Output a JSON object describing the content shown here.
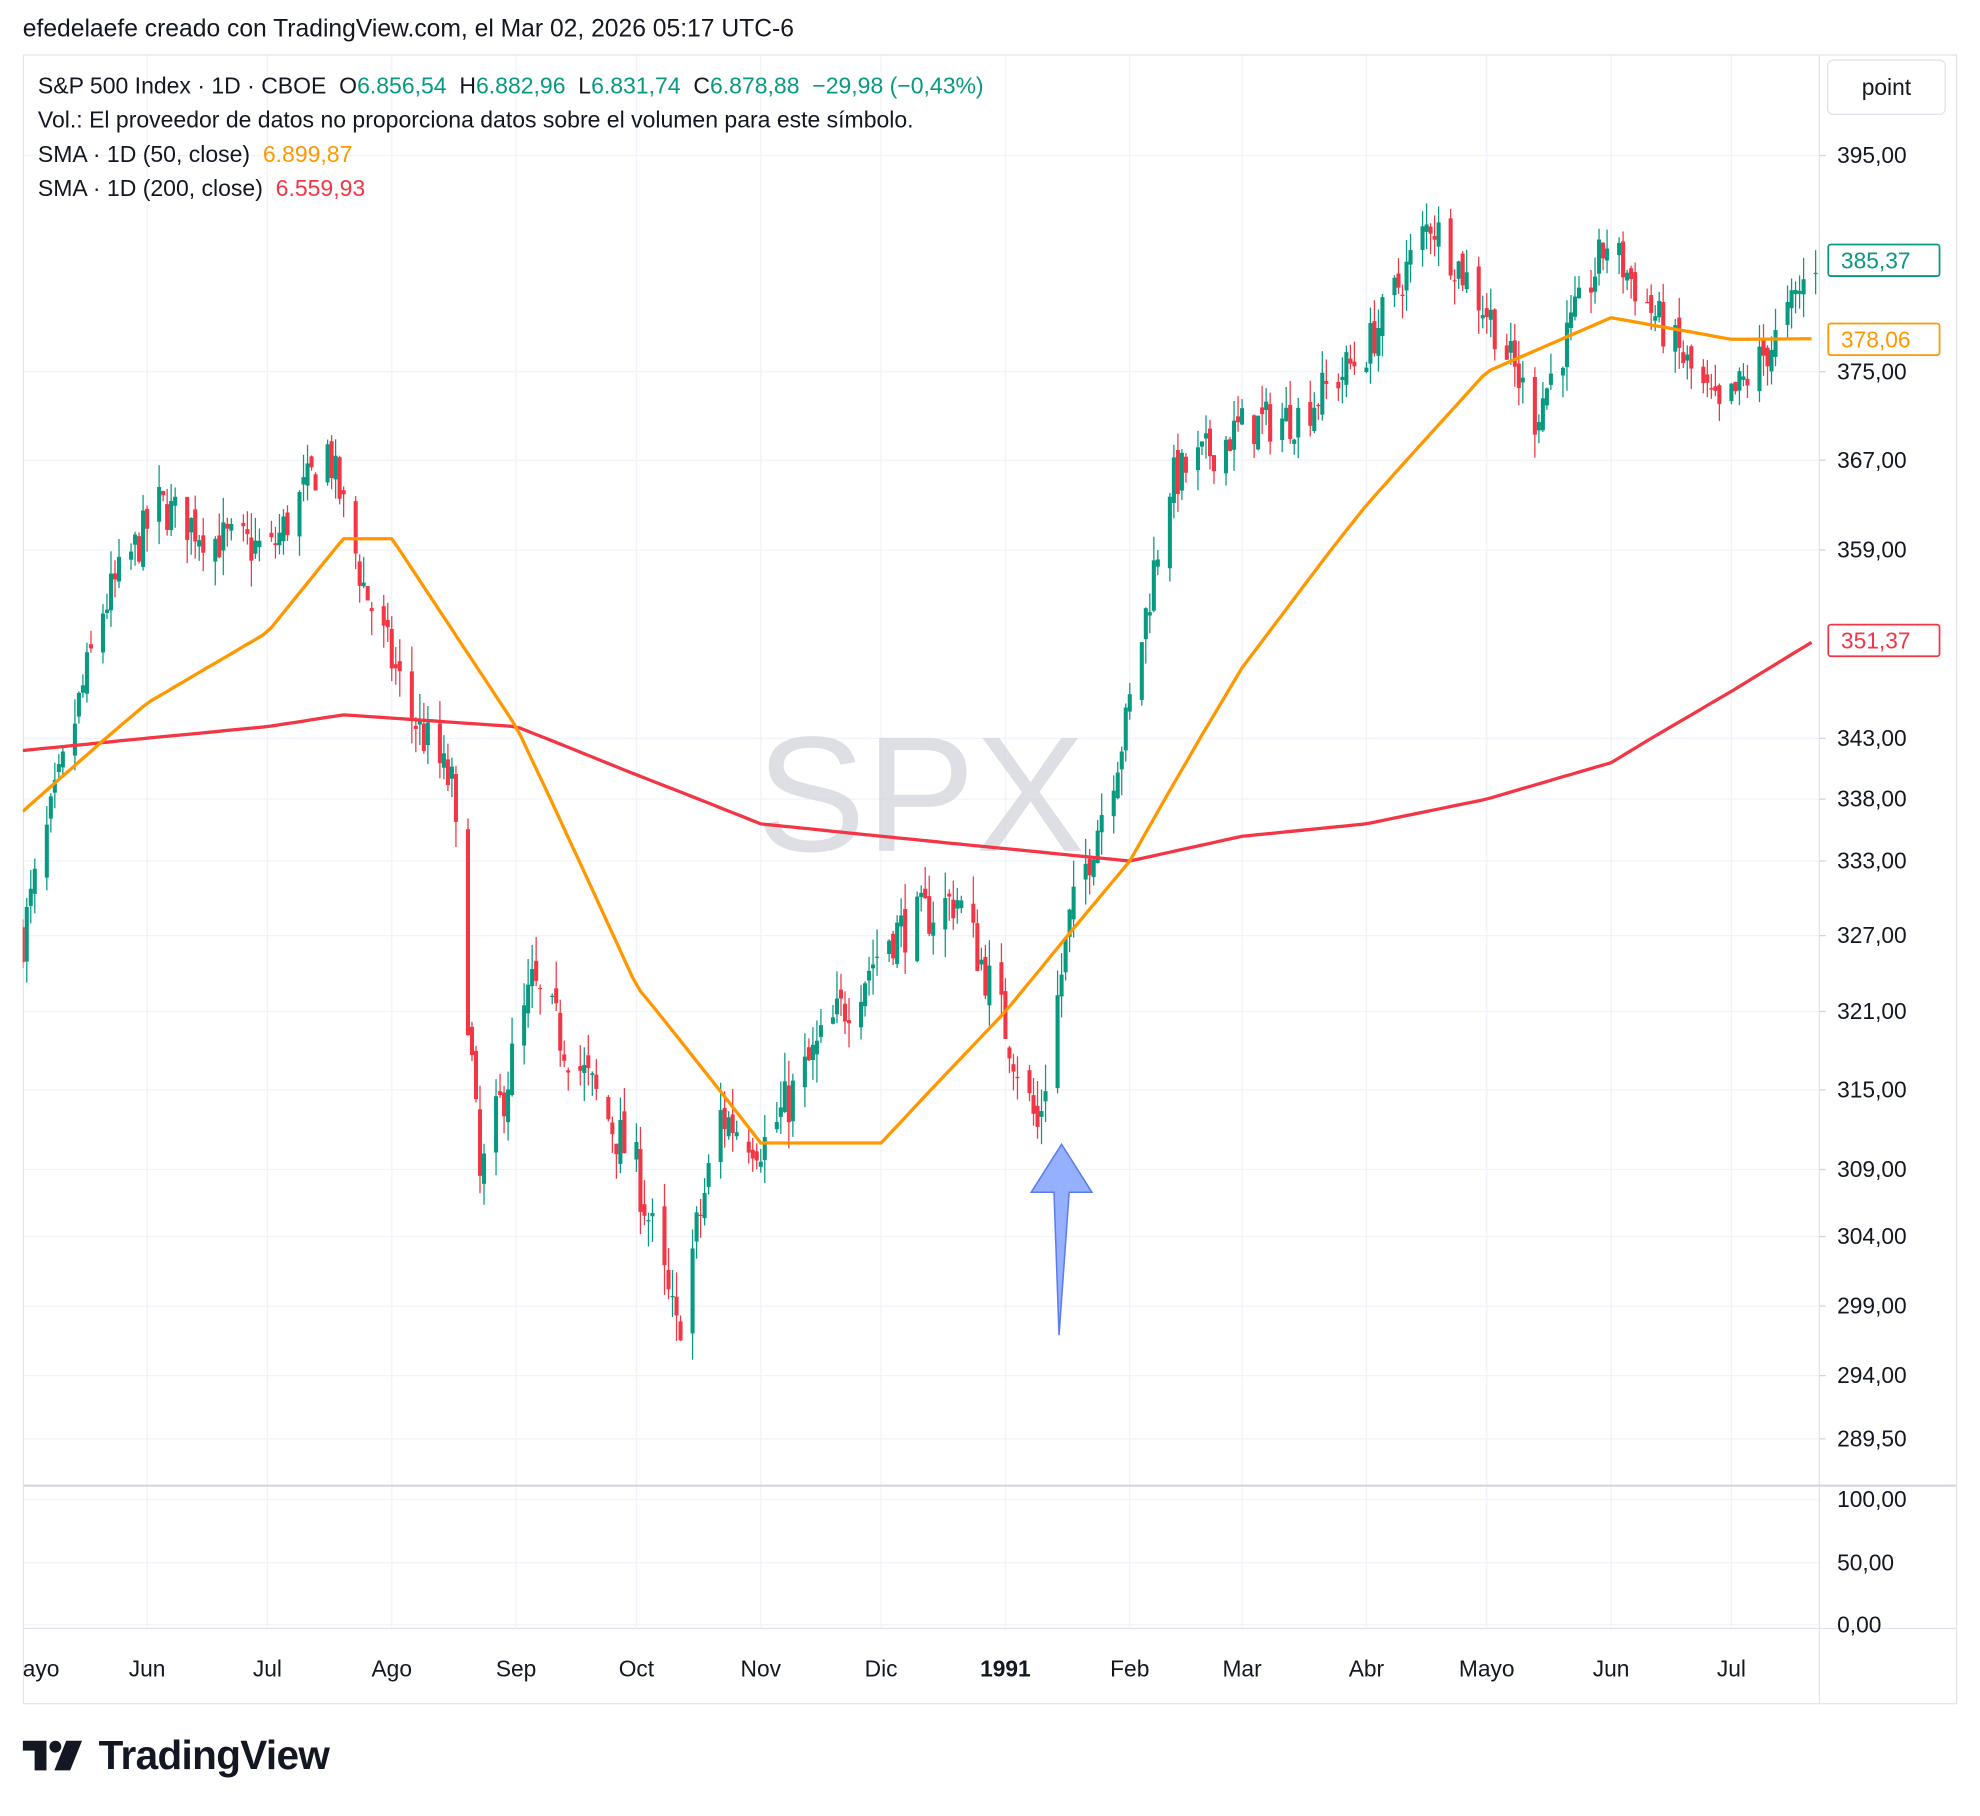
{
  "header": {
    "credit": "efedelaefe creado con TradingView.com, el Mar 02, 2026 05:17 UTC-6",
    "unit_button": "point"
  },
  "legend": {
    "symbol": "S&P 500 Index · 1D · CBOE",
    "o_label": "O",
    "o_value": "6.856,54",
    "h_label": "H",
    "h_value": "6.882,96",
    "l_label": "L",
    "l_value": "6.831,74",
    "c_label": "C",
    "c_value": "6.878,88",
    "change": "−29,98 (−0,43%)",
    "volume_note": "Vol.: El proveedor de datos no proporciona datos sobre el volumen para este símbolo.",
    "sma50_label": "SMA · 1D (50, close)",
    "sma50_value": "6.899,87",
    "sma200_label": "SMA · 1D (200, close)",
    "sma200_value": "6.559,93"
  },
  "footer": {
    "brand": "TradingView"
  },
  "colors": {
    "up": "#089981",
    "down": "#f23645",
    "sma50": "#ff9800",
    "sma200": "#f23645",
    "arrow": "#7b9cff",
    "grid": "#f0f3fa"
  },
  "chart_data": {
    "type": "candlestick",
    "watermark": "SPX",
    "x_labels": [
      "ayo",
      "Jun",
      "Jul",
      "Ago",
      "Sep",
      "Oct",
      "Nov",
      "Dic",
      "1991",
      "Feb",
      "Mar",
      "Abr",
      "Mayo",
      "Jun",
      "Jul"
    ],
    "y_ticks": [
      "395,00",
      "375,00",
      "367,00",
      "359,00",
      "343,00",
      "338,00",
      "333,00",
      "327,00",
      "321,00",
      "315,00",
      "309,00",
      "304,00",
      "299,00",
      "294,00",
      "289,50"
    ],
    "oscillator_ticks": [
      "100,00",
      "50,00",
      "0,00"
    ],
    "price_labels": [
      {
        "text": "385,37",
        "value": 385.37,
        "color": "#089981",
        "style": "outline"
      },
      {
        "text": "378,06",
        "value": 378.06,
        "color": "#ff9800",
        "style": "outline"
      },
      {
        "text": "351,37",
        "value": 351.37,
        "color": "#f23645",
        "style": "outline"
      }
    ],
    "close_anchors": [
      [
        "1990-05-01",
        327
      ],
      [
        "1990-05-21",
        354
      ],
      [
        "1990-06-04",
        363
      ],
      [
        "1990-06-18",
        360
      ],
      [
        "1990-07-02",
        359
      ],
      [
        "1990-07-16",
        368
      ],
      [
        "1990-07-25",
        356
      ],
      [
        "1990-08-06",
        345
      ],
      [
        "1990-08-16",
        339
      ],
      [
        "1990-08-23",
        308
      ],
      [
        "1990-09-05",
        323
      ],
      [
        "1990-09-20",
        315
      ],
      [
        "1990-10-01",
        309
      ],
      [
        "1990-10-11",
        297
      ],
      [
        "1990-10-22",
        313
      ],
      [
        "1990-11-02",
        311
      ],
      [
        "1990-11-15",
        318
      ],
      [
        "1990-12-03",
        327
      ],
      [
        "1990-12-20",
        330
      ],
      [
        "1991-01-02",
        319
      ],
      [
        "1991-01-09",
        312
      ],
      [
        "1991-01-17",
        328
      ],
      [
        "1991-01-31",
        344
      ],
      [
        "1991-02-11",
        365
      ],
      [
        "1991-03-01",
        370
      ],
      [
        "1991-03-15",
        371
      ],
      [
        "1991-04-01",
        377
      ],
      [
        "1991-04-17",
        389
      ],
      [
        "1991-05-02",
        380
      ],
      [
        "1991-05-13",
        371
      ],
      [
        "1991-05-31",
        387
      ],
      [
        "1991-06-14",
        379
      ],
      [
        "1991-06-28",
        371
      ],
      [
        "1991-07-12",
        378
      ],
      [
        "1991-07-22",
        385.37
      ]
    ],
    "sma50_anchors": [
      [
        "1990-05-01",
        337
      ],
      [
        "1990-06-01",
        346
      ],
      [
        "1990-07-01",
        352
      ],
      [
        "1990-07-20",
        360
      ],
      [
        "1990-08-01",
        360
      ],
      [
        "1990-09-01",
        344
      ],
      [
        "1990-10-01",
        323
      ],
      [
        "1990-11-01",
        311
      ],
      [
        "1990-12-01",
        311
      ],
      [
        "1991-01-01",
        321
      ],
      [
        "1991-02-01",
        333
      ],
      [
        "1991-03-01",
        349
      ],
      [
        "1991-04-01",
        363
      ],
      [
        "1991-05-01",
        375
      ],
      [
        "1991-06-01",
        380
      ],
      [
        "1991-07-01",
        378
      ],
      [
        "1991-07-22",
        378.06
      ]
    ],
    "sma200_anchors": [
      [
        "1990-05-01",
        342
      ],
      [
        "1990-07-01",
        344
      ],
      [
        "1990-07-20",
        345
      ],
      [
        "1990-09-01",
        344
      ],
      [
        "1990-10-01",
        340
      ],
      [
        "1990-11-01",
        336
      ],
      [
        "1990-12-01",
        335
      ],
      [
        "1991-01-01",
        334
      ],
      [
        "1991-02-01",
        333
      ],
      [
        "1991-03-01",
        335
      ],
      [
        "1991-04-01",
        336
      ],
      [
        "1991-05-01",
        338
      ],
      [
        "1991-06-01",
        341
      ],
      [
        "1991-07-01",
        347
      ],
      [
        "1991-07-22",
        351.37
      ]
    ],
    "annotation": {
      "type": "arrow-up",
      "date": "1991-01-15",
      "color": "#7b9cff"
    }
  }
}
